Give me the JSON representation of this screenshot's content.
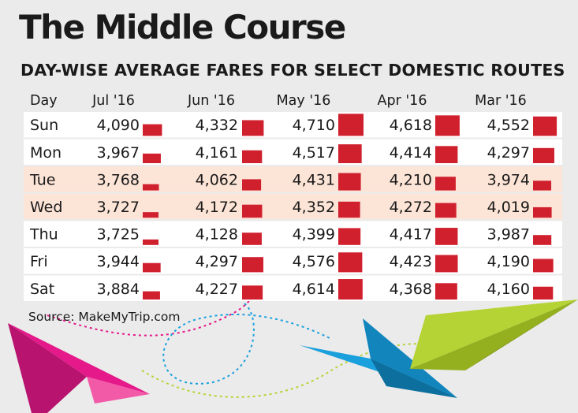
{
  "chart_data": {
    "type": "table",
    "title": "The Middle Course",
    "subtitle": "DAY-WISE AVERAGE FARES FOR SELECT DOMESTIC ROUTES",
    "row_header": "Day",
    "columns": [
      "Jul '16",
      "Jun '16",
      "May '16",
      "Apr '16",
      "Mar '16"
    ],
    "rows": [
      {
        "day": "Sun",
        "values": [
          4090,
          4332,
          4710,
          4618,
          4552
        ],
        "highlight": false
      },
      {
        "day": "Mon",
        "values": [
          3967,
          4161,
          4517,
          4414,
          4297
        ],
        "highlight": false
      },
      {
        "day": "Tue",
        "values": [
          3768,
          4062,
          4431,
          4210,
          3974
        ],
        "highlight": true
      },
      {
        "day": "Wed",
        "values": [
          3727,
          4172,
          4352,
          4272,
          4019
        ],
        "highlight": true
      },
      {
        "day": "Thu",
        "values": [
          3725,
          4128,
          4399,
          4417,
          3987
        ],
        "highlight": false
      },
      {
        "day": "Fri",
        "values": [
          3944,
          4297,
          4576,
          4423,
          4190
        ],
        "highlight": false
      },
      {
        "day": "Sat",
        "values": [
          3884,
          4227,
          4614,
          4368,
          4160
        ],
        "highlight": false
      }
    ],
    "bar_color": "#d0202e",
    "highlight_color": "#fce4d6",
    "row_color": "#ffffff"
  },
  "source": "Source: MakeMyTrip.com",
  "decor": {
    "plane_colors": [
      "#e5198a",
      "#1aa0dc",
      "#b5d334"
    ]
  }
}
